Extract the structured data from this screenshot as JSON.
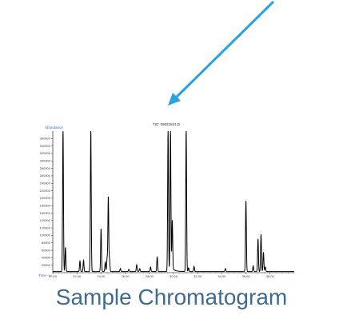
{
  "caption": "Sample Chromatogram",
  "arrow_color": "#29a3e0",
  "trace_color": "#000000",
  "label_color": "#2f6fd0",
  "chart_data": {
    "type": "line",
    "title": "TIC: 09021841.D",
    "ylabel": "Abundance",
    "xlabel": "Time-->",
    "xlim": [
      20,
      40
    ],
    "ylim": [
      0,
      380000
    ],
    "x_ticks": [
      20,
      22,
      24,
      26,
      28,
      30,
      32,
      34,
      36,
      38
    ],
    "x_tick_labels": [
      "20.00",
      "22.00",
      "24.00",
      "26.00",
      "28.00",
      "30.00",
      "32.00",
      "34.00",
      "36.00",
      "38.00"
    ],
    "y_ticks": [
      20000,
      40000,
      60000,
      80000,
      100000,
      120000,
      140000,
      160000,
      180000,
      200000,
      220000,
      240000,
      260000,
      280000,
      300000,
      320000,
      340000,
      360000
    ],
    "y_tick_labels": [
      "20000",
      "40000",
      "60000",
      "80000",
      "100000",
      "120000",
      "140000",
      "160000",
      "180000",
      "200000",
      "220000",
      "240000",
      "260000",
      "280000",
      "300000",
      "320000",
      "340000",
      "360000"
    ],
    "peaks": [
      {
        "t": 20.85,
        "h": 380000
      },
      {
        "t": 21.05,
        "h": 65000
      },
      {
        "t": 22.25,
        "h": 28000
      },
      {
        "t": 22.55,
        "h": 30000
      },
      {
        "t": 23.15,
        "h": 380000
      },
      {
        "t": 24.0,
        "h": 115000
      },
      {
        "t": 24.35,
        "h": 25000
      },
      {
        "t": 24.5,
        "h": 35000
      },
      {
        "t": 24.6,
        "h": 200000
      },
      {
        "t": 24.7,
        "h": 32000
      },
      {
        "t": 25.6,
        "h": 8000
      },
      {
        "t": 26.3,
        "h": 6000
      },
      {
        "t": 26.95,
        "h": 18000
      },
      {
        "t": 27.2,
        "h": 8000
      },
      {
        "t": 28.1,
        "h": 12000
      },
      {
        "t": 28.65,
        "h": 40000
      },
      {
        "t": 29.55,
        "h": 380000
      },
      {
        "t": 29.75,
        "h": 380000
      },
      {
        "t": 29.9,
        "h": 130000
      },
      {
        "t": 31.05,
        "h": 380000
      },
      {
        "t": 31.25,
        "h": 10000
      },
      {
        "t": 31.7,
        "h": 14000
      },
      {
        "t": 34.3,
        "h": 8000
      },
      {
        "t": 36.0,
        "h": 190000
      },
      {
        "t": 36.6,
        "h": 15000
      },
      {
        "t": 37.0,
        "h": 88000
      },
      {
        "t": 37.25,
        "h": 100000
      },
      {
        "t": 37.45,
        "h": 52000
      },
      {
        "t": 37.6,
        "h": 12000
      }
    ]
  }
}
